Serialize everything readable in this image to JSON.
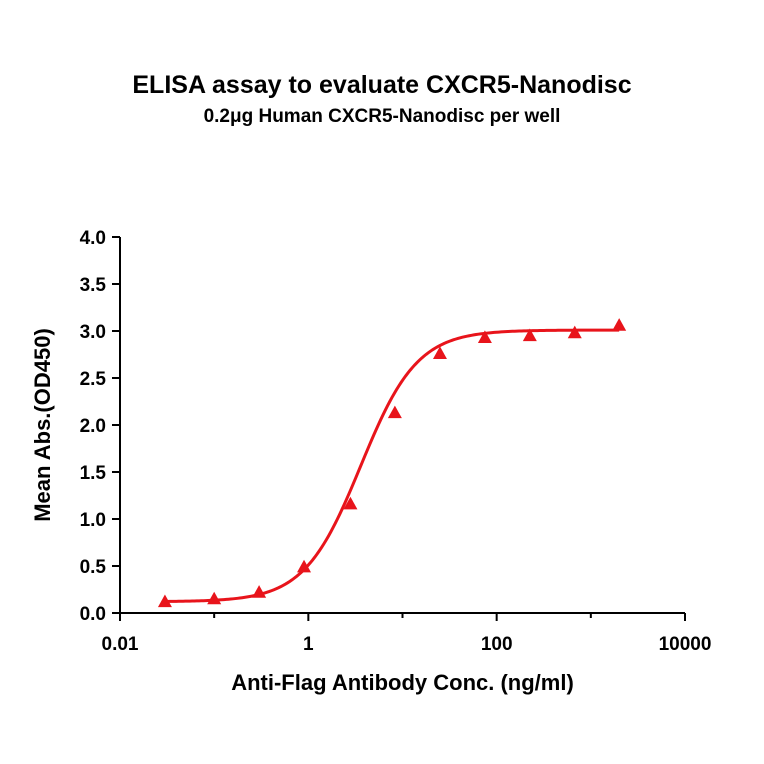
{
  "chart_data": {
    "type": "scatter",
    "title": "ELISA assay to evaluate CXCR5-Nanodisc",
    "subtitle": "0.2μg Human CXCR5-Nanodisc per well",
    "xlabel": "Anti-Flag Antibody Conc. (ng/ml)",
    "ylabel": "Mean Abs.(OD450)",
    "xscale": "log",
    "xlim": [
      0.01,
      10000
    ],
    "ylim": [
      0,
      4.0
    ],
    "xticks": [
      0.01,
      1,
      100,
      10000
    ],
    "xtick_labels": [
      "0.01",
      "1",
      "100",
      "10000"
    ],
    "yticks": [
      0.0,
      0.5,
      1.0,
      1.5,
      2.0,
      2.5,
      3.0,
      3.5,
      4.0
    ],
    "ytick_labels": [
      "0.0",
      "0.5",
      "1.0",
      "1.5",
      "2.0",
      "2.5",
      "3.0",
      "3.5",
      "4.0"
    ],
    "grid": false,
    "legend": "none",
    "color": "#e8141b",
    "marker": "triangle",
    "fit": "4-parameter logistic curve",
    "series": [
      {
        "x": [
          0.03,
          0.1,
          0.3,
          0.9,
          2.8,
          8.3,
          25,
          75,
          225,
          675,
          2000
        ],
        "y": [
          0.12,
          0.15,
          0.22,
          0.49,
          1.16,
          2.13,
          2.76,
          2.93,
          2.95,
          2.98,
          3.06
        ]
      }
    ]
  }
}
